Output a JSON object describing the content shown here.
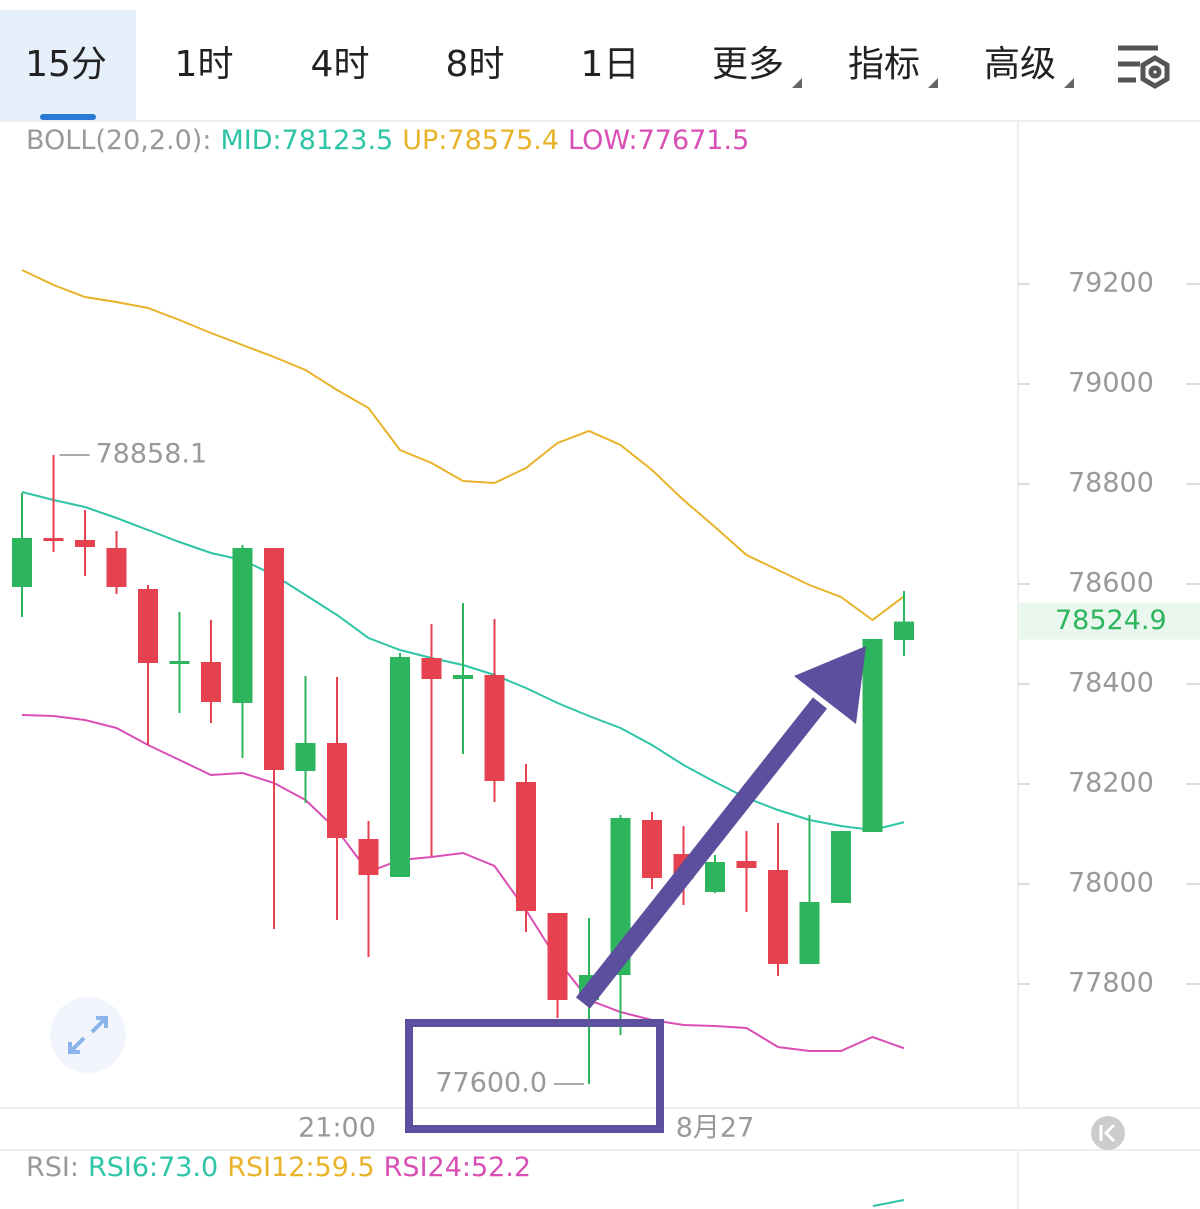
{
  "tabs": [
    "15分",
    "1时",
    "4时",
    "8时",
    "1日",
    "更多",
    "指标",
    "高级"
  ],
  "chart_data": {
    "type": "candlestick",
    "indicator_label": "BOLL(20,2.0):",
    "indicator_values": [
      {
        "text": "MID:78123.5",
        "color": "#2ec4a6"
      },
      {
        "text": "UP:78575.4",
        "color": "#e8b32a"
      },
      {
        "text": "LOW:77671.5",
        "color": "#d94fb5"
      }
    ],
    "categories": [
      null,
      null,
      null,
      null,
      null,
      null,
      null,
      null,
      null,
      null,
      "21:00",
      null,
      null,
      null,
      null,
      null,
      null,
      null,
      null,
      null,
      null,
      null,
      "8月27",
      null,
      null,
      null,
      null,
      null,
      null
    ],
    "open": [
      78594,
      78692,
      78688,
      78672,
      78590,
      78442,
      78444,
      78362,
      78672,
      78226,
      78282,
      78090,
      78014,
      78452,
      78410,
      78418,
      78204,
      77942,
      77768,
      77818,
      78128,
      78060,
      77984,
      78046,
      78028,
      77840,
      77962,
      78104,
      78488
    ],
    "high": [
      78782,
      78858.1,
      78748,
      78706,
      78598,
      78544,
      78528,
      78678,
      78672,
      78416,
      78414,
      78126,
      78462,
      78520,
      78562,
      78530,
      78240,
      77942,
      77932,
      78138,
      78144,
      78116,
      78058,
      78106,
      78122,
      78138,
      78106,
      78490,
      78586
    ],
    "low": [
      78534,
      78664,
      78616,
      78580,
      78278,
      78342,
      78322,
      78252,
      77910,
      78162,
      77928,
      77854,
      78014,
      78056,
      78260,
      78164,
      77904,
      77732,
      77600,
      77698,
      77990,
      77958,
      77982,
      77944,
      77816,
      77840,
      77962,
      78104,
      78456
    ],
    "close": [
      78692,
      78686,
      78674,
      78594,
      78442,
      78446,
      78364,
      78672,
      78228,
      78282,
      78092,
      78018,
      78454,
      78410,
      78418,
      78206,
      77946,
      77768,
      77818,
      78132,
      78012,
      78010,
      78044,
      78032,
      77840,
      77964,
      78106,
      78490,
      78524.9
    ],
    "up_color": "#2db55d",
    "down_color": "#e5414f",
    "lines": [
      {
        "color": "#e8b32a",
        "values": [
          79228,
          79198,
          79174,
          79164,
          79152,
          79128,
          79102,
          79078,
          79054,
          79028,
          78988,
          78952,
          78868,
          78842,
          78806,
          78802,
          78832,
          78882,
          78906,
          78878,
          78828,
          78768,
          78714,
          78658,
          78628,
          78598,
          78574,
          78528,
          78575.4
        ]
      },
      {
        "color": "#2ec4a6",
        "values": [
          78784,
          78768,
          78754,
          78732,
          78708,
          78684,
          78662,
          78648,
          78618,
          78578,
          78538,
          78492,
          78468,
          78452,
          78438,
          78418,
          78392,
          78362,
          78336,
          78312,
          78278,
          78238,
          78204,
          78172,
          78148,
          78128,
          78116,
          78108,
          78123.5
        ]
      },
      {
        "color": "#d94fb5",
        "values": [
          78338,
          78336,
          78328,
          78312,
          78278,
          78248,
          78218,
          78222,
          78202,
          78168,
          78108,
          78024,
          78048,
          78054,
          78062,
          78036,
          77948,
          77848,
          77768,
          77744,
          77728,
          77718,
          77716,
          77712,
          77674,
          77666,
          77666,
          77694,
          77671.5
        ]
      }
    ],
    "ylim": [
      77552,
      79524
    ],
    "yticks": [
      77800,
      78000,
      78200,
      78400,
      78600,
      78800,
      79000,
      79200
    ],
    "extreme_labels": {
      "high": "78858.1",
      "low": "77600.0"
    },
    "rsi_label": "RSI:",
    "rsi_values": [
      {
        "text": "RSI6:73.0",
        "color": "#2ec4a6"
      },
      {
        "text": "RSI12:59.5",
        "color": "#e8b32a"
      },
      {
        "text": "RSI24:52.2",
        "color": "#d94fb5"
      }
    ]
  }
}
